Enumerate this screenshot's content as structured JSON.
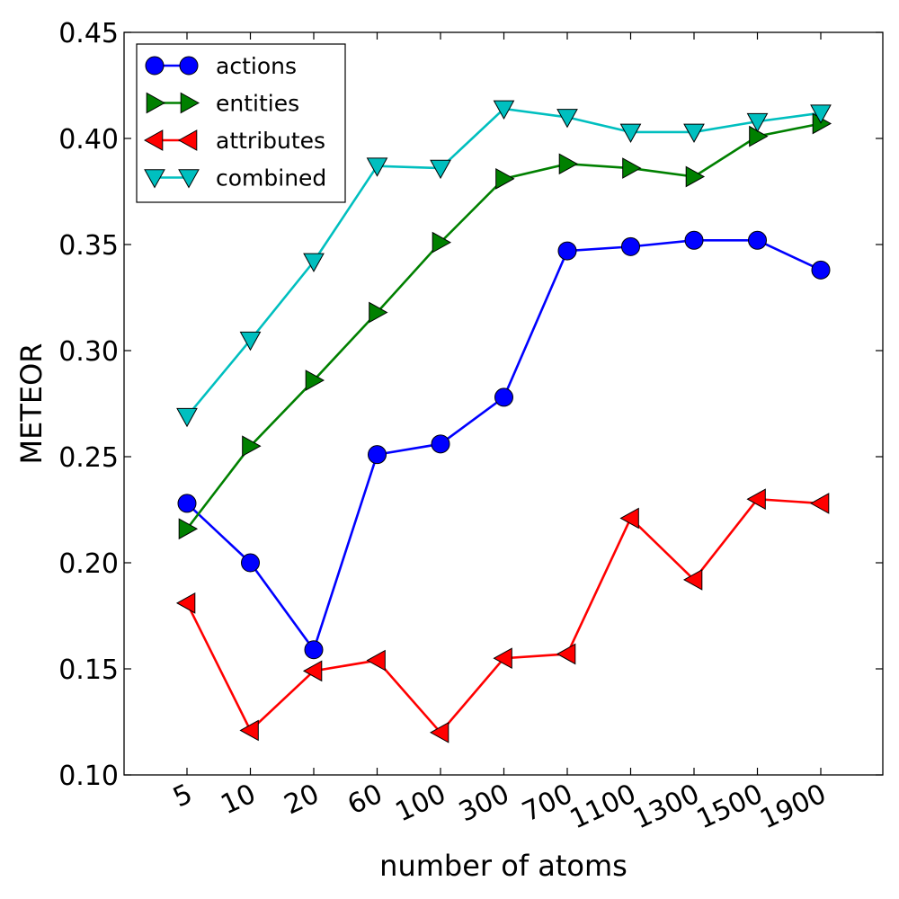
{
  "chart_data": {
    "type": "line",
    "title": "",
    "xlabel": "number of atoms",
    "ylabel": "METEOR",
    "categories": [
      "5",
      "10",
      "20",
      "60",
      "100",
      "300",
      "700",
      "1100",
      "1300",
      "1500",
      "1900"
    ],
    "ylim": [
      0.1,
      0.45
    ],
    "yticks": [
      "0.10",
      "0.15",
      "0.20",
      "0.25",
      "0.30",
      "0.35",
      "0.40",
      "0.45"
    ],
    "grid": false,
    "legend_position": "top-left",
    "series": [
      {
        "name": "actions",
        "color": "#0000ff",
        "marker": "circle",
        "values": [
          0.228,
          0.2,
          0.159,
          0.251,
          0.256,
          0.278,
          0.347,
          0.349,
          0.352,
          0.352,
          0.338
        ]
      },
      {
        "name": "entities",
        "color": "#008000",
        "marker": "triangle-right",
        "values": [
          0.216,
          0.255,
          0.286,
          0.318,
          0.351,
          0.381,
          0.388,
          0.386,
          0.382,
          0.401,
          0.407
        ]
      },
      {
        "name": "attributes",
        "color": "#ff0000",
        "marker": "triangle-left",
        "values": [
          0.181,
          0.121,
          0.149,
          0.154,
          0.12,
          0.155,
          0.157,
          0.221,
          0.192,
          0.23,
          0.228
        ]
      },
      {
        "name": "combined",
        "color": "#00bfbf",
        "marker": "triangle-down",
        "values": [
          0.269,
          0.305,
          0.342,
          0.387,
          0.386,
          0.414,
          0.41,
          0.403,
          0.403,
          0.408,
          0.412
        ]
      }
    ]
  }
}
